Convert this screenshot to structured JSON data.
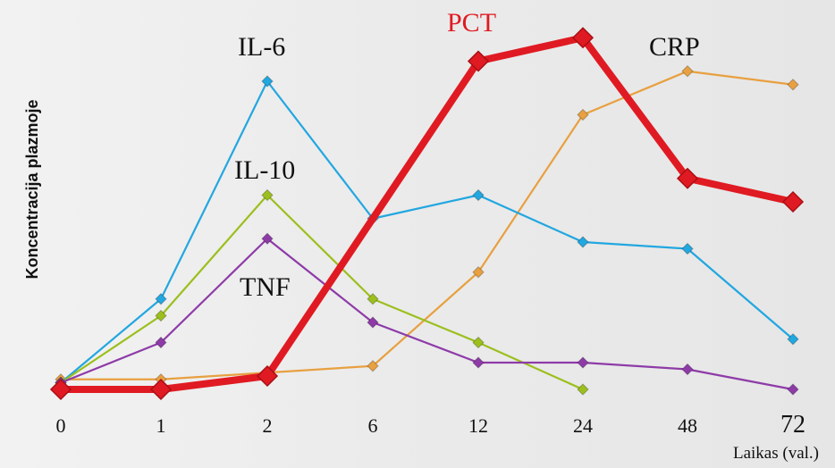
{
  "chart_data": {
    "type": "line",
    "title": "",
    "ylabel": "Koncentracija plazmoje",
    "xlabel": "Laikas (val.)",
    "categories": [
      "0",
      "1",
      "2",
      "6",
      "12",
      "24",
      "48",
      "72"
    ],
    "ylim": [
      0,
      100
    ],
    "grid": false,
    "legend": "inline labels",
    "series": [
      {
        "name": "IL-6",
        "color": "#22a7e0",
        "values": [
          2,
          27,
          92,
          51,
          58,
          44,
          42,
          15
        ]
      },
      {
        "name": "IL-10",
        "color": "#9cbf1e",
        "values": [
          2,
          22,
          58,
          27,
          14,
          0,
          null,
          null
        ]
      },
      {
        "name": "TNF",
        "color": "#8e3ba8",
        "values": [
          2,
          14,
          45,
          20,
          8,
          8,
          6,
          0
        ]
      },
      {
        "name": "PCT",
        "color": "#e01a22",
        "values": [
          0,
          0,
          4,
          null,
          98,
          105,
          63,
          56
        ]
      },
      {
        "name": "CRP",
        "color": "#e8a040",
        "values": [
          3,
          3,
          5,
          7,
          35,
          82,
          95,
          91
        ]
      }
    ]
  }
}
